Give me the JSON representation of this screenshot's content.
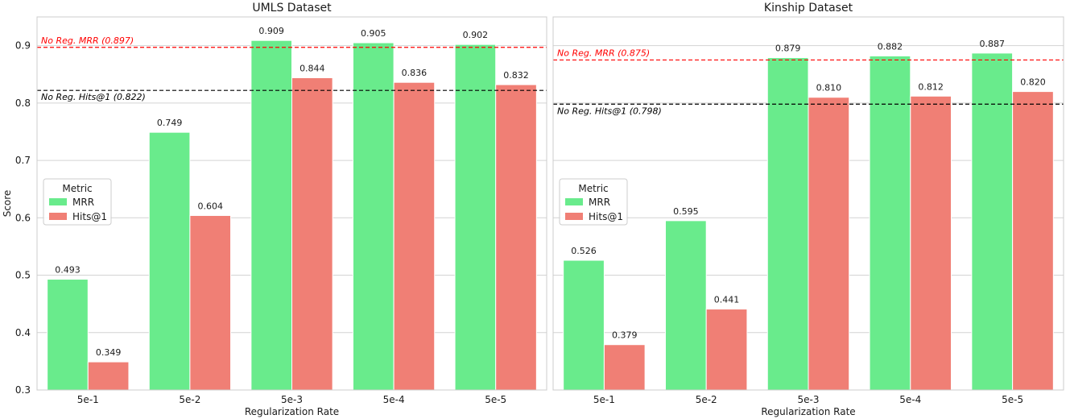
{
  "chart_data": [
    {
      "type": "bar",
      "title": "UMLS Dataset",
      "xlabel": "Regularization Rate",
      "ylabel": "Score",
      "ylim": [
        0.3,
        0.95
      ],
      "yticks": [
        0.3,
        0.4,
        0.5,
        0.6,
        0.7,
        0.8,
        0.9
      ],
      "grid": true,
      "categories": [
        "5e-1",
        "5e-2",
        "5e-3",
        "5e-4",
        "5e-5"
      ],
      "series": [
        {
          "name": "MRR",
          "values": [
            0.493,
            0.749,
            0.909,
            0.905,
            0.902
          ],
          "color": "#69eb8c"
        },
        {
          "name": "Hits@1",
          "values": [
            0.349,
            0.604,
            0.844,
            0.836,
            0.832
          ],
          "color": "#f07f75"
        }
      ],
      "reference_lines": [
        {
          "label": "No Reg. MRR (0.897)",
          "value": 0.897,
          "color": "#ff0000"
        },
        {
          "label": "No Reg. Hits@1 (0.822)",
          "value": 0.822,
          "color": "#000000"
        }
      ],
      "legend": {
        "title": "Metric",
        "placement": "center-left"
      }
    },
    {
      "type": "bar",
      "title": "Kinship Dataset",
      "xlabel": "Regularization Rate",
      "ylabel": "",
      "ylim": [
        0.3,
        0.95
      ],
      "yticks": [
        0.3,
        0.4,
        0.5,
        0.6,
        0.7,
        0.8,
        0.9
      ],
      "grid": true,
      "categories": [
        "5e-1",
        "5e-2",
        "5e-3",
        "5e-4",
        "5e-5"
      ],
      "series": [
        {
          "name": "MRR",
          "values": [
            0.526,
            0.595,
            0.879,
            0.882,
            0.887
          ],
          "color": "#69eb8c"
        },
        {
          "name": "Hits@1",
          "values": [
            0.379,
            0.441,
            0.81,
            0.812,
            0.82
          ],
          "color": "#f07f75"
        }
      ],
      "reference_lines": [
        {
          "label": "No Reg. MRR (0.875)",
          "value": 0.875,
          "color": "#ff0000"
        },
        {
          "label": "No Reg. Hits@1 (0.798)",
          "value": 0.798,
          "color": "#000000"
        }
      ],
      "legend": {
        "title": "Metric",
        "placement": "center-left"
      }
    }
  ]
}
